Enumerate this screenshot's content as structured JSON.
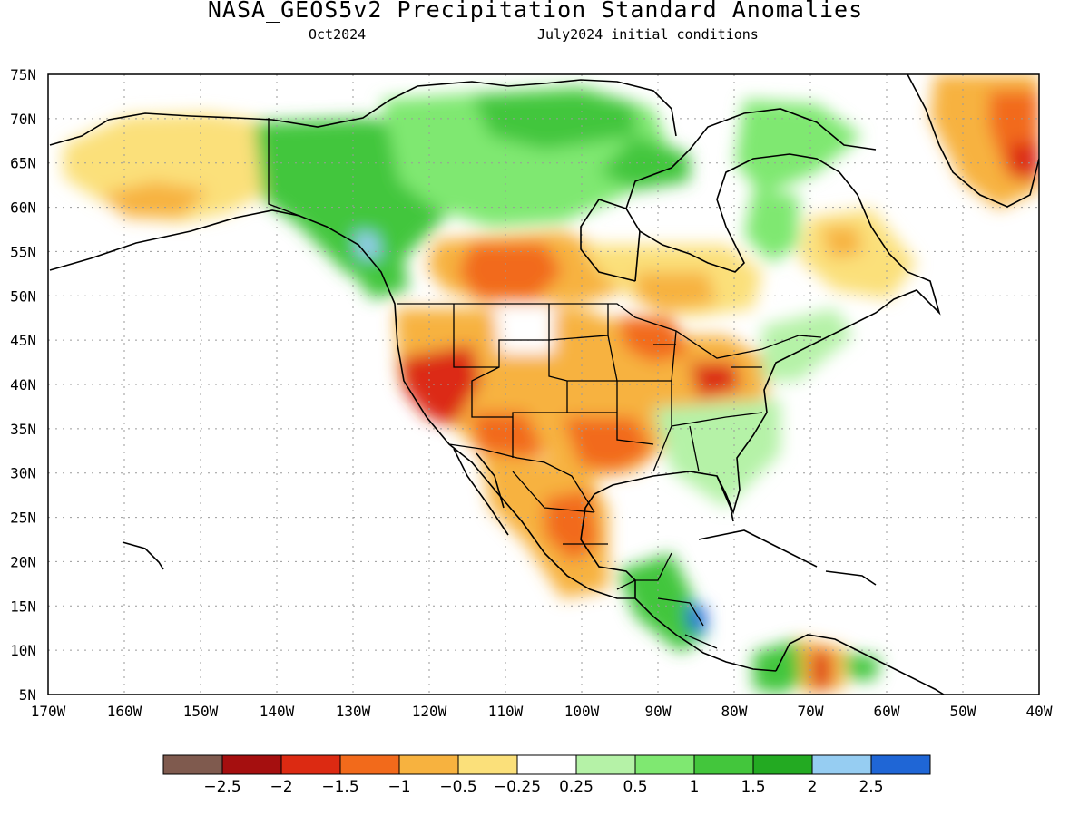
{
  "header": {
    "title": "NASA_GEOS5v2 Precipitation Standard Anomalies",
    "valid_month": "Oct2024",
    "initial_conditions": "July2024 initial conditions"
  },
  "map": {
    "lon_range": [
      -170,
      -40
    ],
    "lat_range": [
      5,
      75
    ],
    "grid": true,
    "lon_ticks": [
      "170W",
      "160W",
      "150W",
      "140W",
      "130W",
      "120W",
      "110W",
      "100W",
      "90W",
      "80W",
      "70W",
      "60W",
      "50W",
      "40W"
    ],
    "lat_ticks": [
      "5N",
      "10N",
      "15N",
      "20N",
      "25N",
      "30N",
      "35N",
      "40N",
      "45N",
      "50N",
      "55N",
      "60N",
      "65N",
      "70N",
      "75N"
    ]
  },
  "colorbar": {
    "colors": [
      "#7f5a4e",
      "#a50f0f",
      "#dc2a12",
      "#f26a1b",
      "#f7b23f",
      "#fbe07a",
      "#ffffff",
      "#b5f2a7",
      "#7fe871",
      "#43c63c",
      "#23aa22",
      "#96cdf2",
      "#1f66d6"
    ],
    "labels": [
      "−2.5",
      "−2",
      "−1.5",
      "−1",
      "−0.5",
      "−0.25",
      "0.25",
      "0.5",
      "1",
      "1.5",
      "2",
      "2.5"
    ]
  },
  "anomaly_regions": [
    {
      "name": "alaska-west",
      "lon": -158,
      "lat": 66,
      "value": -0.5
    },
    {
      "name": "yukon-nwt",
      "lon": -125,
      "lat": 64,
      "value": 1.5
    },
    {
      "name": "arctic-canada",
      "lon": -100,
      "lat": 70,
      "value": 1.0
    },
    {
      "name": "hudson-bay-west",
      "lon": -100,
      "lat": 62,
      "value": 1.0
    },
    {
      "name": "alberta-saskatchewan",
      "lon": -110,
      "lat": 53,
      "value": -1.5
    },
    {
      "name": "northern-quebec",
      "lon": -72,
      "lat": 58,
      "value": 0.5
    },
    {
      "name": "labrador",
      "lon": -62,
      "lat": 54,
      "value": -0.5
    },
    {
      "name": "great-lakes",
      "lon": -84,
      "lat": 44,
      "value": -1.0
    },
    {
      "name": "ohio-valley",
      "lon": -83,
      "lat": 40,
      "value": -1.5
    },
    {
      "name": "california-nevada",
      "lon": -119,
      "lat": 39,
      "value": -1.5
    },
    {
      "name": "southwest-us",
      "lon": -110,
      "lat": 34,
      "value": -1.0
    },
    {
      "name": "texas",
      "lon": -100,
      "lat": 31,
      "value": -1.0
    },
    {
      "name": "mexico-northeast",
      "lon": -100,
      "lat": 24,
      "value": -1.5
    },
    {
      "name": "northern-plains",
      "lon": -100,
      "lat": 46,
      "value": -0.5
    },
    {
      "name": "southeast-us",
      "lon": -84,
      "lat": 33,
      "value": 0.5
    },
    {
      "name": "new-england",
      "lon": -71,
      "lat": 44,
      "value": 0.5
    },
    {
      "name": "central-america",
      "lon": -86,
      "lat": 14,
      "value": 1.5
    },
    {
      "name": "colombia-venezuela",
      "lon": -68,
      "lat": 7,
      "value": -1.0
    },
    {
      "name": "greenland-south",
      "lon": -44,
      "lat": 65,
      "value": -1.5
    }
  ]
}
